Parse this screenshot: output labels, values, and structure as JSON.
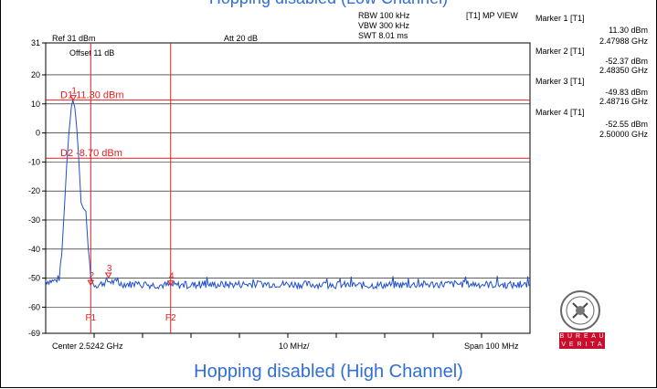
{
  "captions": {
    "top": "Hopping disabled (Low Channel)",
    "bottom": "Hopping disabled (High Channel)"
  },
  "header": {
    "rbw": "RBW 100 kHz",
    "vbw": "VBW 300 kHz",
    "swt": "SWT 8.01 ms",
    "mode": "[T1] MP VIEW",
    "ref": "Ref 31 dBm",
    "att": "Att  20 dB",
    "offset": "Offset 11 dB"
  },
  "markers": [
    {
      "title": "Marker 1 [T1]",
      "level": "11.30 dBm",
      "freq": "2.47988 GHz"
    },
    {
      "title": "Marker 2 [T1]",
      "level": "-52.37 dBm",
      "freq": "2.48350 GHz"
    },
    {
      "title": "Marker 3 [T1]",
      "level": "-49.83 dBm",
      "freq": "2.48716 GHz"
    },
    {
      "title": "Marker 4 [T1]",
      "level": "-52.55 dBm",
      "freq": "2.50000 GHz"
    }
  ],
  "footer": {
    "center": "Center 2.5242 GHz",
    "div": "10 MHz/",
    "span": "Span 100 MHz"
  },
  "logo": {
    "line1": "B U R E A U",
    "line2": "V E R I T A S",
    "seal": "BUREAU VERITAS 1828"
  },
  "colors": {
    "trace": "#1f4fd0",
    "marker": "#e02020",
    "caption": "#2f6fd6"
  },
  "chart_data": {
    "type": "line",
    "title": "",
    "xlabel": "",
    "ylabel": "",
    "xlim": [
      2.4742,
      2.5742
    ],
    "ylim": [
      -69,
      31
    ],
    "yticks": [
      31,
      20,
      10,
      0,
      -10,
      -20,
      -30,
      -40,
      -50,
      -60,
      -69
    ],
    "ytick_labels": [
      "31",
      "20",
      "10",
      "0",
      "-10",
      "-20",
      "-30",
      "-40",
      "-50",
      "-60",
      "-69"
    ],
    "grid": true,
    "series": [
      {
        "x": [
          2.4742,
          2.476,
          2.477,
          2.4775,
          2.478,
          2.4785,
          2.479,
          2.4795,
          2.4798,
          2.4802,
          2.4806,
          2.481,
          2.4815,
          2.482,
          2.4825,
          2.483,
          2.4835,
          2.484,
          2.485,
          2.487,
          2.49,
          2.5,
          2.52,
          2.54,
          2.56,
          2.5742
        ],
        "y": [
          -51,
          -51,
          -50,
          -42,
          -28,
          -12,
          0,
          9,
          11.3,
          9,
          2,
          -8,
          -24,
          -26,
          -27,
          -40,
          -49,
          -52,
          -52.4,
          -51,
          -52,
          -52.5,
          -52,
          -52.5,
          -52,
          -52.5
        ]
      }
    ],
    "display_lines": [
      {
        "name": "D1",
        "label": "D1 11.30 dBm",
        "y": 11.3
      },
      {
        "name": "D2",
        "label": "D2 -8.70 dBm",
        "y": -8.7
      }
    ],
    "frequency_lines": [
      {
        "name": "F1",
        "x": 2.4835
      },
      {
        "name": "F2",
        "x": 2.5
      }
    ],
    "markers": [
      {
        "label": "1",
        "x": 2.47988,
        "y": 11.3
      },
      {
        "label": "2",
        "x": 2.4835,
        "y": -52.37
      },
      {
        "label": "3",
        "x": 2.48716,
        "y": -49.83
      },
      {
        "label": "4",
        "x": 2.5,
        "y": -52.55
      }
    ]
  }
}
